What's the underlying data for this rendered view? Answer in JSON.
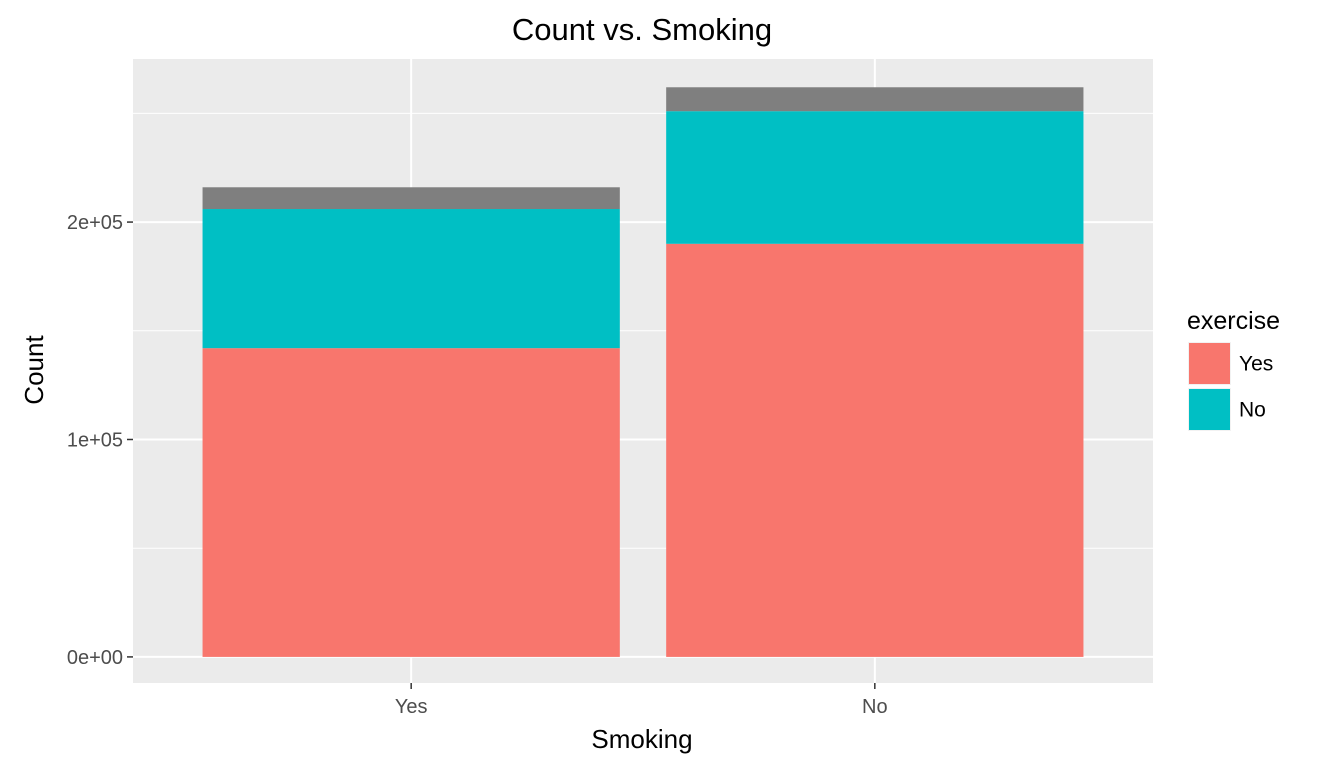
{
  "chart_data": {
    "type": "bar",
    "stacked": true,
    "title": "Count vs. Smoking",
    "xlabel": "Smoking",
    "ylabel": "Count",
    "categories": [
      "Yes",
      "No"
    ],
    "series": [
      {
        "name": "Yes",
        "color": "#F8766D",
        "values": [
          142000,
          190000
        ]
      },
      {
        "name": "No",
        "color": "#00BFC4",
        "values": [
          64000,
          61000
        ]
      },
      {
        "name": "",
        "color": "#7F7F7F",
        "values": [
          10000,
          11000
        ]
      }
    ],
    "ylim": [
      -12000,
      275000
    ],
    "y_ticks": [
      0,
      100000,
      200000
    ],
    "y_tick_labels": [
      "0e+00",
      "1e+05",
      "2e+05"
    ],
    "grid": true,
    "panel_background": "#EBEBEB",
    "legend": {
      "title": "exercise",
      "position": "right",
      "entries": [
        "Yes",
        "No"
      ]
    }
  }
}
